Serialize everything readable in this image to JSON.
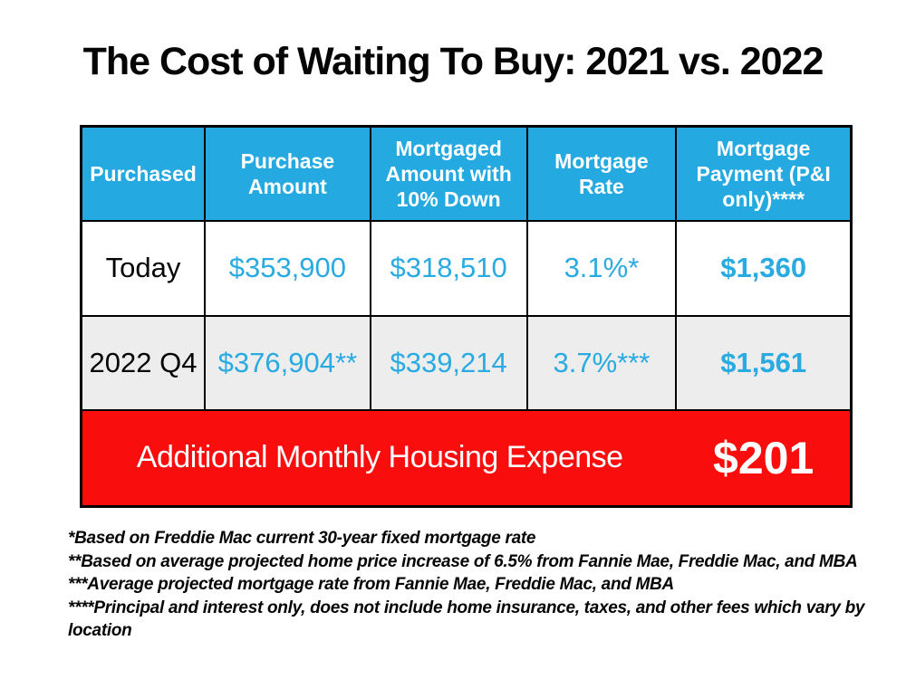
{
  "title": "The Cost of Waiting To Buy: 2021 vs. 2022",
  "table": {
    "headers": [
      "Purchased",
      "Purchase Amount",
      "Mortgaged Amount with 10% Down",
      "Mortgage Rate",
      "Mortgage Payment (P&I only)****"
    ],
    "rows": [
      {
        "label": "Today",
        "purchase_amount": "$353,900",
        "mortgaged_amount": "$318,510",
        "rate": "3.1%*",
        "payment": "$1,360"
      },
      {
        "label": "2022 Q4",
        "purchase_amount": "$376,904**",
        "mortgaged_amount": "$339,214",
        "rate": "3.7%***",
        "payment": "$1,561"
      }
    ],
    "summary": {
      "label": "Additional Monthly Housing Expense",
      "value": "$201"
    }
  },
  "footnotes": [
    "*Based on Freddie Mac current 30-year fixed mortgage rate",
    "**Based on average projected home price increase of 6.5% from Fannie Mae, Freddie Mac, and MBA",
    "***Average projected mortgage rate from Fannie Mae, Freddie Mac, and MBA",
    "****Principal and interest only, does not include home insurance, taxes, and other fees which vary by location"
  ],
  "colors": {
    "header_blue": "#24A9E1",
    "value_blue": "#29ABE2",
    "accent_red": "#F90D0D",
    "row_alt_gray": "#EDEDED",
    "border_black": "#000000"
  },
  "chart_data": {
    "type": "table",
    "title": "The Cost of Waiting To Buy: 2021 vs. 2022",
    "columns": [
      "Purchased",
      "Purchase Amount",
      "Mortgaged Amount with 10% Down",
      "Mortgage Rate",
      "Mortgage Payment (P&I only)****"
    ],
    "rows": [
      [
        "Today",
        "$353,900",
        "$318,510",
        "3.1%*",
        "$1,360"
      ],
      [
        "2022 Q4",
        "$376,904**",
        "$339,214",
        "3.7%***",
        "$1,561"
      ]
    ],
    "summary_row": [
      "Additional Monthly Housing Expense",
      "$201"
    ],
    "footnotes": [
      "*Based on Freddie Mac current 30-year fixed mortgage rate",
      "**Based on average projected home price increase of 6.5% from Fannie Mae, Freddie Mac, and MBA",
      "***Average projected mortgage rate from Fannie Mae, Freddie Mac, and MBA",
      "****Principal and interest only, does not include home insurance, taxes, and other fees which vary by location"
    ]
  }
}
